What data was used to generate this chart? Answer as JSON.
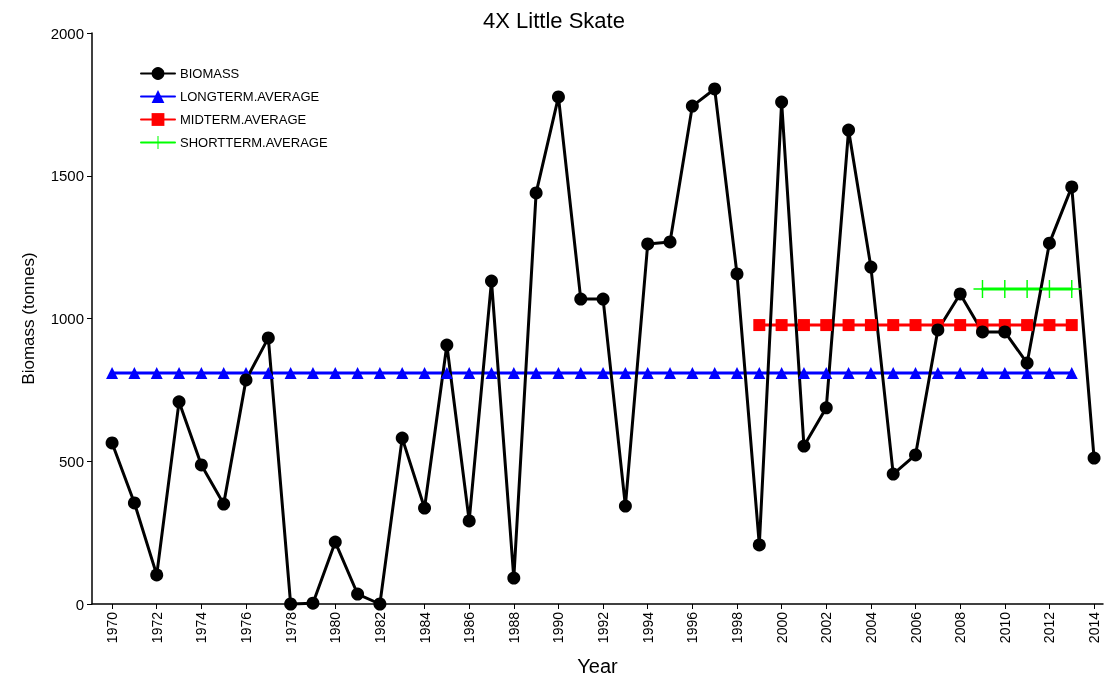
{
  "chart_data": {
    "type": "line",
    "title": "4X Little Skate",
    "xlabel": "Year",
    "ylabel": "Biomass (tonnes)",
    "xlim": [
      1969.1,
      2014.4
    ],
    "xticks": [
      1970,
      1972,
      1974,
      1976,
      1978,
      1980,
      1982,
      1984,
      1986,
      1988,
      1990,
      1992,
      1994,
      1996,
      1998,
      2000,
      2002,
      2004,
      2006,
      2008,
      2010,
      2012,
      2014
    ],
    "ylim": [
      0,
      2000
    ],
    "yticks": [
      0,
      500,
      1000,
      1500,
      2000
    ],
    "grid": false,
    "legend": "top left",
    "line_style": "solid",
    "series": [
      {
        "name": "BIOMASS",
        "color": "#000000",
        "marker": "circle",
        "x": [
          1970,
          1971,
          1972,
          1973,
          1974,
          1975,
          1976,
          1977,
          1978,
          1979,
          1980,
          1981,
          1982,
          1983,
          1984,
          1985,
          1986,
          1987,
          1988,
          1989,
          1990,
          1991,
          1992,
          1993,
          1994,
          1995,
          1996,
          1997,
          1998,
          1999,
          2000,
          2001,
          2002,
          2003,
          2004,
          2005,
          2006,
          2007,
          2008,
          2009,
          2010,
          2011,
          2012,
          2013,
          2014
        ],
        "values": [
          564,
          354,
          102,
          708,
          487,
          350,
          785,
          932,
          0,
          3,
          217,
          35,
          0,
          581,
          336,
          907,
          291,
          1131,
          91,
          1440,
          1776,
          1068,
          1068,
          343,
          1261,
          1268,
          1744,
          1804,
          1156,
          207,
          1758,
          553,
          687,
          1660,
          1180,
          455,
          522,
          960,
          1086,
          953,
          953,
          844,
          1264,
          1461,
          511
        ]
      },
      {
        "name": "LONGTERM.AVERAGE",
        "color": "#0000ff",
        "marker": "triangle",
        "x": [
          1970,
          1971,
          1972,
          1973,
          1974,
          1975,
          1976,
          1977,
          1978,
          1979,
          1980,
          1981,
          1982,
          1983,
          1984,
          1985,
          1986,
          1987,
          1988,
          1989,
          1990,
          1991,
          1992,
          1993,
          1994,
          1995,
          1996,
          1997,
          1998,
          1999,
          2000,
          2001,
          2002,
          2003,
          2004,
          2005,
          2006,
          2007,
          2008,
          2009,
          2010,
          2011,
          2012,
          2013
        ],
        "values": [
          809,
          809,
          809,
          809,
          809,
          809,
          809,
          809,
          809,
          809,
          809,
          809,
          809,
          809,
          809,
          809,
          809,
          809,
          809,
          809,
          809,
          809,
          809,
          809,
          809,
          809,
          809,
          809,
          809,
          809,
          809,
          809,
          809,
          809,
          809,
          809,
          809,
          809,
          809,
          809,
          809,
          809,
          809,
          809
        ]
      },
      {
        "name": "MIDTERM.AVERAGE",
        "color": "#ff0000",
        "marker": "square",
        "x": [
          1999,
          2000,
          2001,
          2002,
          2003,
          2004,
          2005,
          2006,
          2007,
          2008,
          2009,
          2010,
          2011,
          2012,
          2013
        ],
        "values": [
          977,
          977,
          977,
          977,
          977,
          977,
          977,
          977,
          977,
          977,
          977,
          977,
          977,
          977,
          977
        ]
      },
      {
        "name": "SHORTTERM.AVERAGE",
        "color": "#00ff00",
        "marker": "cross",
        "x": [
          2009,
          2010,
          2011,
          2012,
          2013
        ],
        "values": [
          1103,
          1103,
          1103,
          1103,
          1103
        ]
      }
    ]
  }
}
